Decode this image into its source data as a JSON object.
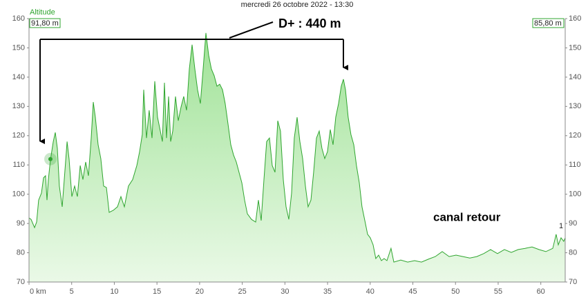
{
  "chart_data": {
    "type": "area",
    "title": "mercredi 26 octobre 2022 - 13:30",
    "y_label": "Altitude",
    "start_label": "91,80 m",
    "end_label": "85,80 m",
    "annotations": [
      "D+ : 440 m",
      "canal retour",
      "1"
    ],
    "color": "#2fa52f",
    "x": [
      0,
      0.24,
      0.65,
      0.89,
      1.13,
      1.46,
      1.7,
      1.94,
      2.11,
      2.27,
      2.51,
      2.84,
      3.08,
      3.32,
      3.56,
      3.89,
      4.13,
      4.46,
      4.7,
      5.02,
      5.35,
      5.67,
      6.0,
      6.32,
      6.64,
      6.97,
      7.29,
      7.53,
      7.78,
      8.1,
      8.42,
      8.75,
      9.07,
      9.4,
      9.88,
      10.37,
      10.77,
      11.18,
      11.66,
      12.15,
      12.64,
      12.96,
      13.28,
      13.45,
      13.77,
      14.09,
      14.42,
      14.74,
      15.07,
      15.39,
      15.63,
      15.88,
      16.12,
      16.36,
      16.61,
      16.85,
      17.17,
      17.5,
      17.82,
      18.14,
      18.47,
      18.79,
      19.12,
      19.44,
      19.76,
      20.09,
      20.41,
      20.74,
      21.06,
      21.38,
      21.71,
      22.03,
      22.36,
      22.68,
      23.0,
      23.33,
      23.65,
      23.98,
      24.3,
      24.62,
      24.95,
      25.27,
      25.6,
      26.08,
      26.57,
      26.89,
      27.22,
      27.54,
      27.86,
      28.19,
      28.51,
      28.84,
      29.16,
      29.48,
      29.81,
      30.13,
      30.46,
      30.78,
      31.1,
      31.43,
      31.75,
      32.08,
      32.4,
      32.72,
      33.05,
      33.37,
      33.7,
      34.02,
      34.34,
      34.67,
      34.99,
      35.32,
      35.64,
      35.96,
      36.29,
      36.61,
      36.86,
      37.1,
      37.42,
      37.74,
      38.07,
      38.39,
      38.72,
      39.04,
      39.37,
      39.69,
      40.01,
      40.34,
      40.66,
      40.99,
      41.31,
      41.63,
      41.96,
      42.44,
      42.77,
      43.58,
      44.39,
      45.2,
      46.01,
      46.82,
      47.63,
      48.44,
      49.25,
      50.06,
      50.87,
      51.68,
      52.49,
      53.3,
      54.11,
      54.92,
      55.73,
      56.54,
      57.35,
      58.16,
      58.97,
      59.78,
      60.59,
      61.4,
      61.8,
      62.05,
      62.37,
      62.69,
      62.86
    ],
    "values": [
      91.9,
      91.4,
      88.6,
      90.5,
      98,
      100.4,
      105.6,
      106.3,
      98,
      105,
      111.7,
      118,
      121.1,
      115.7,
      102.8,
      95.7,
      105,
      118,
      112,
      99.2,
      102.8,
      99.2,
      109.8,
      105,
      111,
      106.3,
      119.2,
      131.5,
      126.3,
      116.9,
      112.2,
      102.8,
      102.3,
      93.8,
      94.5,
      95.7,
      99.2,
      95.7,
      102.8,
      105,
      109.8,
      114.5,
      120.4,
      135.7,
      119.2,
      128.7,
      119.2,
      138.6,
      126.3,
      121.6,
      118,
      138.1,
      119.2,
      133.4,
      118,
      121.6,
      133.4,
      125.1,
      129.8,
      133.4,
      128.7,
      142.8,
      151.1,
      142.8,
      135.7,
      131,
      142.8,
      155.1,
      147.5,
      142.8,
      140.5,
      136.9,
      137.6,
      135.7,
      131,
      124,
      116.9,
      113.4,
      111,
      107.5,
      103.9,
      98,
      93.3,
      91.4,
      90.5,
      98,
      91,
      105,
      118,
      119.2,
      109.8,
      107.5,
      125.1,
      121.6,
      105,
      95.7,
      91.4,
      100.4,
      119.2,
      126.3,
      118,
      112.2,
      102.8,
      95.7,
      98,
      107.5,
      119.2,
      121.6,
      115.7,
      112.2,
      114.5,
      122.1,
      116.9,
      126.3,
      131,
      136.9,
      139.3,
      135.7,
      126.3,
      120.4,
      116.9,
      109.8,
      103.9,
      95.7,
      91,
      86.3,
      85.1,
      82.7,
      78,
      79.2,
      77.3,
      78,
      77.3,
      81.5,
      76.8,
      77.5,
      76.8,
      77.3,
      76.8,
      77.8,
      78.7,
      80.4,
      78.7,
      79.2,
      78.7,
      78.2,
      78.7,
      79.7,
      81.1,
      79.7,
      81.1,
      80.1,
      81.1,
      81.5,
      82,
      81.1,
      80.4,
      81.5,
      86.3,
      82.7,
      85.1,
      83.9,
      85.1
    ],
    "marker": {
      "x": 2.51,
      "y": 112
    },
    "xlim": [
      0,
      62.86
    ],
    "ylim": [
      70,
      160
    ],
    "y2lim": [
      70,
      160
    ],
    "xticks": [
      {
        "value": 0,
        "label": "0 km"
      },
      5,
      10,
      15,
      20,
      25,
      30,
      35,
      40,
      45,
      50,
      55,
      60
    ],
    "yticks": [
      70,
      80,
      90,
      100,
      110,
      120,
      130,
      140,
      150,
      160
    ],
    "y2ticks": [
      70,
      80,
      90,
      100,
      110,
      120,
      130,
      140,
      150,
      160
    ]
  }
}
